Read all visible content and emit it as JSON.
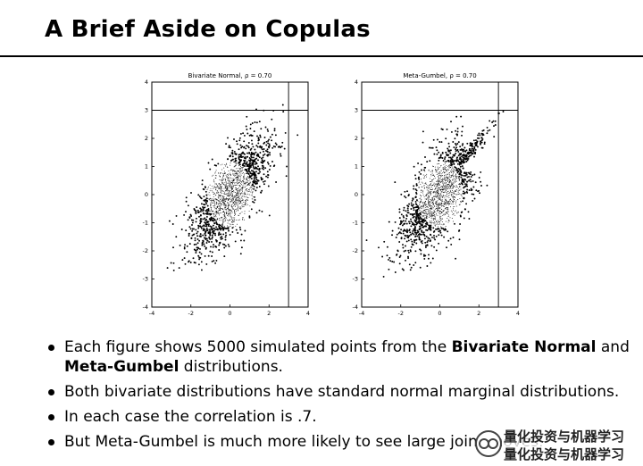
{
  "title": "A Brief Aside on Copulas",
  "chart_data": [
    {
      "type": "scatter",
      "title": "Bivariate Normal, ρ = 0.70",
      "xlim": [
        -4,
        4
      ],
      "ylim": [
        -4,
        4
      ],
      "xticks": [
        -4,
        -2,
        0,
        2,
        4
      ],
      "yticks": [
        -4,
        -3,
        -2,
        -1,
        0,
        1,
        2,
        3,
        4
      ],
      "reference_lines": {
        "x": 3,
        "y": 3
      },
      "n_points": 5000,
      "correlation": 0.7,
      "distribution": "normal"
    },
    {
      "type": "scatter",
      "title": "Meta-Gumbel, ρ = 0.70",
      "xlim": [
        -4,
        4
      ],
      "ylim": [
        -4,
        4
      ],
      "xticks": [
        -4,
        -2,
        0,
        2,
        4
      ],
      "yticks": [
        -4,
        -3,
        -2,
        -1,
        0,
        1,
        2,
        3,
        4
      ],
      "reference_lines": {
        "x": 3,
        "y": 3
      },
      "n_points": 5000,
      "correlation": 0.7,
      "distribution": "meta-gumbel"
    }
  ],
  "bullets": [
    {
      "parts": [
        {
          "t": "Each figure shows 5000 simulated points from the ",
          "b": false
        },
        {
          "t": "Bivariate Normal",
          "b": true
        },
        {
          "t": " and ",
          "b": false
        },
        {
          "t": "Meta-Gumbel",
          "b": true
        },
        {
          "t": " distributions.",
          "b": false
        }
      ]
    },
    {
      "parts": [
        {
          "t": "Both bivariate distributions have standard normal marginal distributions.",
          "b": false
        }
      ]
    },
    {
      "parts": [
        {
          "t": "In each case the correlation is .7.",
          "b": false
        }
      ]
    },
    {
      "parts": [
        {
          "t": "But Meta-Gumbel is much more likely to see large joint moves.",
          "b": false
        }
      ]
    }
  ],
  "watermark": {
    "text": "量化投资与机器学习",
    "icon": "wechat-icon"
  }
}
